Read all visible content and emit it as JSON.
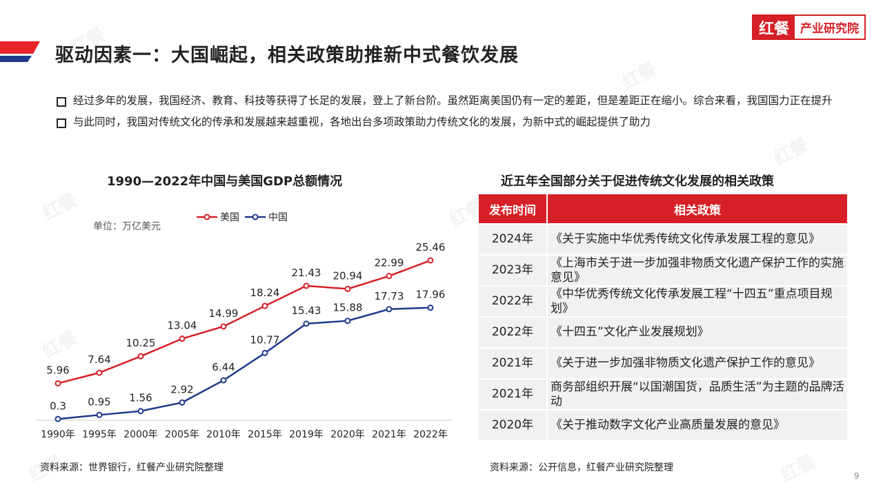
{
  "header": {
    "title": "驱动因素一：大国崛起，相关政策助推新中式餐饮发展",
    "logo_part1": "红餐",
    "logo_part2": "产业研究院",
    "brand_color": "#d61f26",
    "accent_blue": "#1d3a8a"
  },
  "bullets": [
    "经过多年的发展，我国经济、教育、科技等获得了长足的发展，登上了新台阶。虽然距离美国仍有一定的差距，但是差距正在缩小。综合来看，我国国力正在提升",
    "与此同时，我国对传统文化的传承和发展越来越重视，各地出台多项政策助力传统文化的发展，为新中式的崛起提供了助力"
  ],
  "chart_data": {
    "type": "line",
    "title": "1990—2022年中国与美国GDP总额情况",
    "unit_label": "单位：万亿美元",
    "categories": [
      "1990年",
      "1995年",
      "2000年",
      "2005年",
      "2010年",
      "2015年",
      "2019年",
      "2020年",
      "2021年",
      "2022年"
    ],
    "series": [
      {
        "name": "美国",
        "color": "#d61f26",
        "values": [
          5.96,
          7.64,
          10.25,
          13.04,
          14.99,
          18.24,
          21.43,
          20.94,
          22.99,
          25.46
        ]
      },
      {
        "name": "中国",
        "color": "#1d3a8a",
        "values": [
          0.3,
          0.95,
          1.56,
          2.92,
          6.44,
          10.77,
          15.43,
          15.88,
          17.73,
          17.96
        ]
      }
    ],
    "legend_position": "top-center",
    "grid": false
  },
  "chart_source": "资料来源：世界银行，红餐产业研究院整理",
  "policy_table": {
    "title": "近五年全国部分关于促进传统文化发展的相关政策",
    "headers": [
      "发布时间",
      "相关政策"
    ],
    "rows": [
      [
        "2024年",
        "《关于实施中华优秀传统文化传承发展工程的意见》"
      ],
      [
        "2023年",
        "《上海市关于进一步加强非物质文化遗产保护工作的实施意见》"
      ],
      [
        "2022年",
        "《中华优秀传统文化传承发展工程“十四五”重点项目规划》"
      ],
      [
        "2022年",
        "《十四五”文化产业发展规划》"
      ],
      [
        "2021年",
        "《关于进一步加强非物质文化遗产保护工作的意见》"
      ],
      [
        "2021年",
        "商务部组织开展“以国潮国货，品质生活”为主题的品牌活动"
      ],
      [
        "2020年",
        "《关于推动数字文化产业高质量发展的意见》"
      ]
    ]
  },
  "table_source": "资料来源：公开信息，红餐产业研究院整理",
  "page_number": "9"
}
